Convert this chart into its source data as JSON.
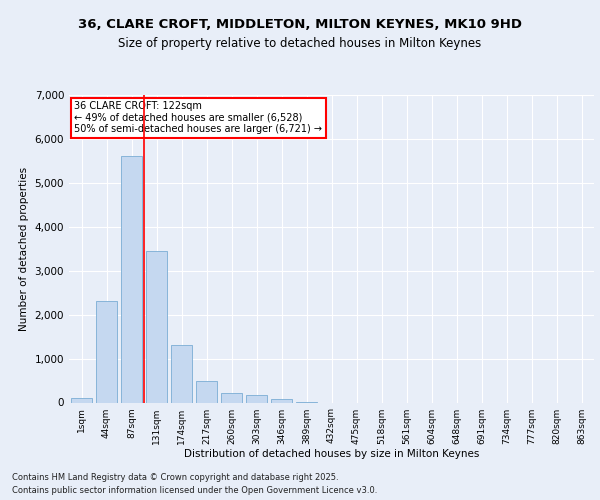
{
  "title_line1": "36, CLARE CROFT, MIDDLETON, MILTON KEYNES, MK10 9HD",
  "title_line2": "Size of property relative to detached houses in Milton Keynes",
  "xlabel": "Distribution of detached houses by size in Milton Keynes",
  "ylabel": "Number of detached properties",
  "categories": [
    "1sqm",
    "44sqm",
    "87sqm",
    "131sqm",
    "174sqm",
    "217sqm",
    "260sqm",
    "303sqm",
    "346sqm",
    "389sqm",
    "432sqm",
    "475sqm",
    "518sqm",
    "561sqm",
    "604sqm",
    "648sqm",
    "691sqm",
    "734sqm",
    "777sqm",
    "820sqm",
    "863sqm"
  ],
  "values": [
    100,
    2300,
    5600,
    3450,
    1300,
    500,
    210,
    170,
    70,
    10,
    0,
    0,
    0,
    0,
    0,
    0,
    0,
    0,
    0,
    0,
    0
  ],
  "bar_color": "#c5d8f0",
  "bar_edge_color": "#7aadd4",
  "vline_color": "red",
  "vline_x_index": 2.5,
  "annotation_title": "36 CLARE CROFT: 122sqm",
  "annotation_line1": "← 49% of detached houses are smaller (6,528)",
  "annotation_line2": "50% of semi-detached houses are larger (6,721) →",
  "ylim": [
    0,
    7000
  ],
  "yticks": [
    0,
    1000,
    2000,
    3000,
    4000,
    5000,
    6000,
    7000
  ],
  "footer_line1": "Contains HM Land Registry data © Crown copyright and database right 2025.",
  "footer_line2": "Contains public sector information licensed under the Open Government Licence v3.0.",
  "bg_color": "#e8eef8",
  "plot_bg_color": "#e8eef8",
  "title_fontsize": 9.5,
  "subtitle_fontsize": 8.5,
  "xlabel_fontsize": 7.5,
  "ylabel_fontsize": 7.5,
  "xtick_fontsize": 6.5,
  "ytick_fontsize": 7.5,
  "annotation_fontsize": 7.0,
  "footer_fontsize": 6.0
}
